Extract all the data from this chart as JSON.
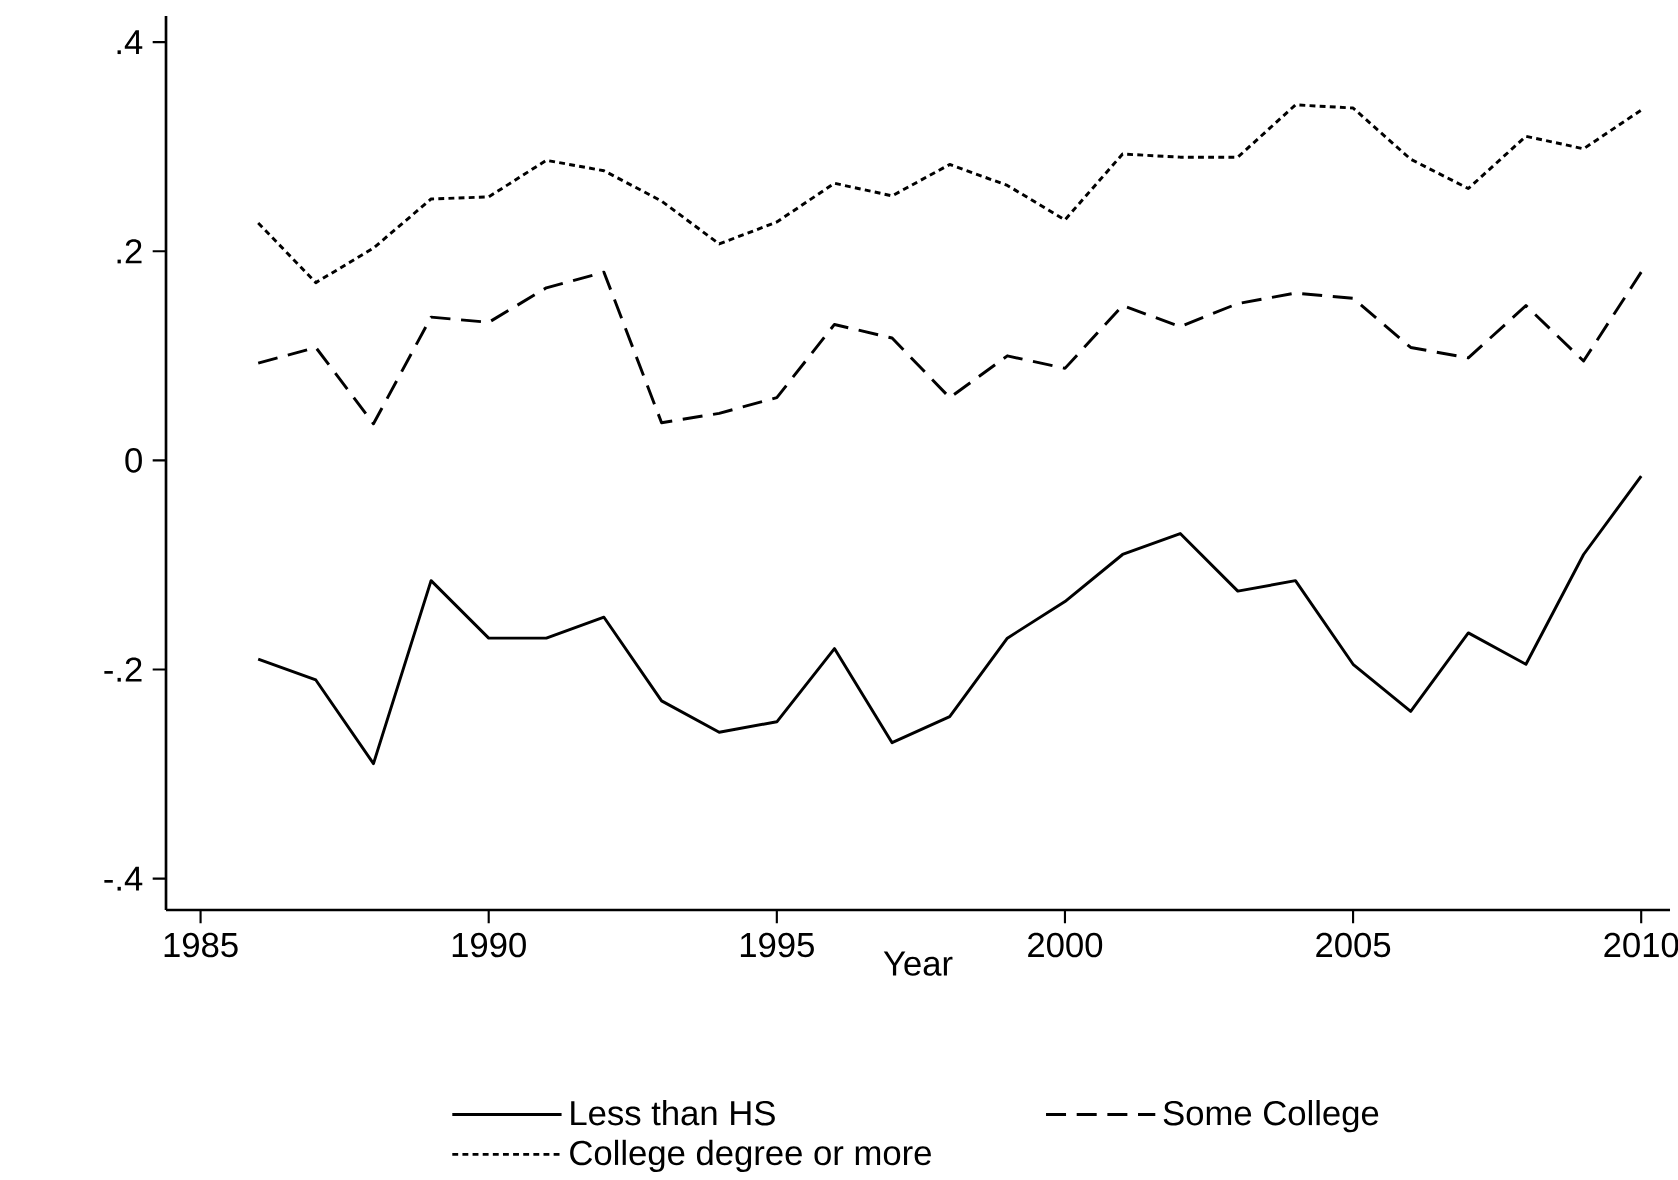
{
  "chart_data": {
    "type": "line",
    "xlabel": "Year",
    "x": [
      1986,
      1987,
      1988,
      1989,
      1990,
      1991,
      1992,
      1993,
      1994,
      1995,
      1996,
      1997,
      1998,
      1999,
      2000,
      2001,
      2002,
      2003,
      2004,
      2005,
      2006,
      2007,
      2008,
      2009,
      2010
    ],
    "series": [
      {
        "name": "Less than HS",
        "color": "#000000",
        "line_style": "solid",
        "values": [
          -0.19,
          -0.21,
          -0.29,
          -0.115,
          -0.17,
          -0.17,
          -0.15,
          -0.23,
          -0.26,
          -0.25,
          -0.18,
          -0.27,
          -0.245,
          -0.17,
          -0.135,
          -0.09,
          -0.07,
          -0.125,
          -0.115,
          -0.195,
          -0.24,
          -0.165,
          -0.195,
          -0.09,
          -0.015
        ]
      },
      {
        "name": "Some College",
        "color": "#000000",
        "line_style": "dashed",
        "values": [
          0.093,
          0.108,
          0.035,
          0.137,
          0.132,
          0.165,
          0.18,
          0.036,
          0.045,
          0.06,
          0.13,
          0.117,
          0.06,
          0.1,
          0.088,
          0.148,
          0.128,
          0.15,
          0.16,
          0.155,
          0.108,
          0.098,
          0.148,
          0.095,
          0.18
        ]
      },
      {
        "name": "College degree or more",
        "color": "#000000",
        "line_style": "dotted",
        "values": [
          0.227,
          0.17,
          0.203,
          0.25,
          0.252,
          0.287,
          0.277,
          0.248,
          0.207,
          0.228,
          0.265,
          0.253,
          0.283,
          0.263,
          0.23,
          0.293,
          0.29,
          0.29,
          0.34,
          0.337,
          0.288,
          0.26,
          0.31,
          0.298,
          0.335
        ]
      }
    ],
    "xlim": [
      1984.4,
      2010.5
    ],
    "ylim": [
      -0.43,
      0.425
    ],
    "xticks": [
      1985,
      1990,
      1995,
      2000,
      2005,
      2010
    ],
    "yticks": [
      {
        "value": -0.4,
        "label": "-.4"
      },
      {
        "value": -0.2,
        "label": "-.2"
      },
      {
        "value": 0,
        "label": "0"
      },
      {
        "value": 0.2,
        "label": ".2"
      },
      {
        "value": 0.4,
        "label": ".4"
      }
    ],
    "grid": false,
    "legend": "bottom",
    "marker": "none"
  }
}
